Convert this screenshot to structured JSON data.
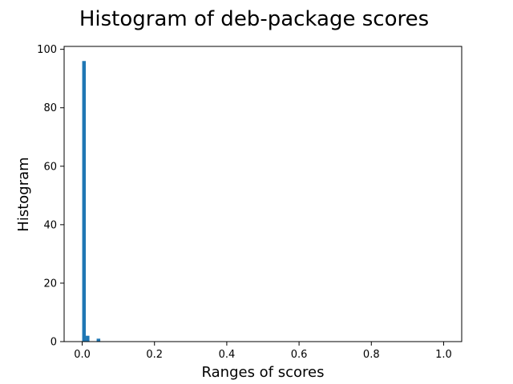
{
  "chart_data": {
    "type": "bar",
    "title": "Histogram of deb-package scores",
    "xlabel": "Ranges of scores",
    "ylabel": "Histogram",
    "xlim": [
      -0.05,
      1.05
    ],
    "ylim": [
      0,
      101
    ],
    "xticks": [
      0.0,
      0.2,
      0.4,
      0.6,
      0.8,
      1.0
    ],
    "xtick_labels": [
      "0.0",
      "0.2",
      "0.4",
      "0.6",
      "0.8",
      "1.0"
    ],
    "yticks": [
      0,
      20,
      40,
      60,
      80,
      100
    ],
    "ytick_labels": [
      "0",
      "20",
      "40",
      "60",
      "80",
      "100"
    ],
    "bin_width": 0.01,
    "bins": [
      {
        "start": 0.0,
        "end": 0.01,
        "value": 96
      },
      {
        "start": 0.01,
        "end": 0.02,
        "value": 2
      },
      {
        "start": 0.02,
        "end": 0.03,
        "value": 0
      },
      {
        "start": 0.03,
        "end": 0.04,
        "value": 0
      },
      {
        "start": 0.04,
        "end": 0.05,
        "value": 1
      }
    ],
    "bar_color": "#1f77b4",
    "grid": false,
    "legend": false
  }
}
